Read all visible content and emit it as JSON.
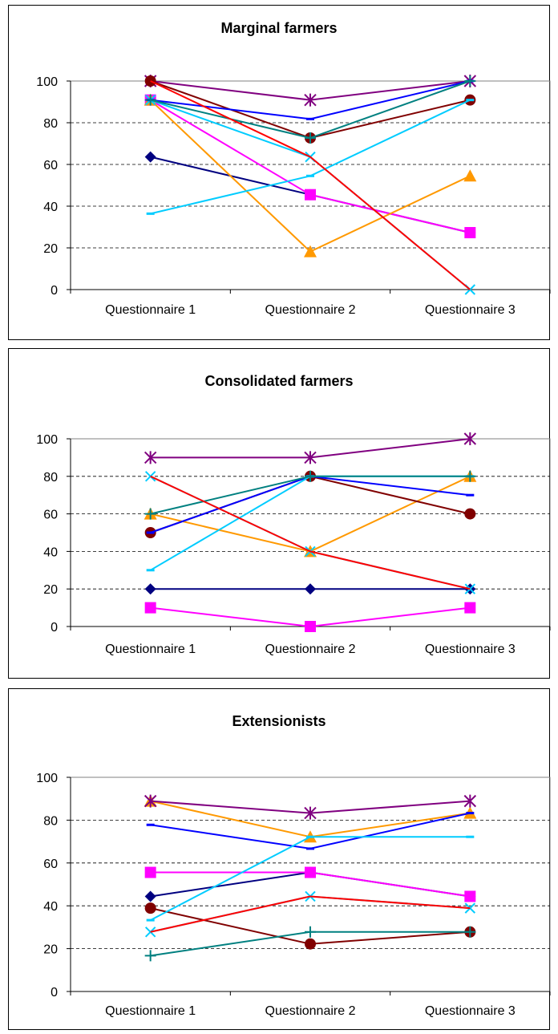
{
  "chart_data": [
    {
      "type": "line",
      "title": "Marginal farmers",
      "categories": [
        "Questionnaire 1",
        "Questionnaire 2",
        "Questionnaire 3"
      ],
      "ylim": [
        0,
        100
      ],
      "yticks": [
        "0",
        "20",
        "40",
        "60",
        "80",
        "100"
      ],
      "grid": true,
      "series": [
        {
          "color": "#000080",
          "marker": "diamond",
          "values": [
            63.6,
            45.5,
            27.3
          ]
        },
        {
          "color": "#FF00FF",
          "marker": "square",
          "values": [
            90.9,
            45.5,
            27.3
          ]
        },
        {
          "color": "#FF9900",
          "marker": "triangle",
          "values": [
            90.9,
            18.2,
            54.5
          ]
        },
        {
          "color": "#00CCFF",
          "marker": "x",
          "values": [
            90.9,
            63.6,
            0
          ]
        },
        {
          "color": "#800080",
          "marker": "star",
          "values": [
            100,
            90.9,
            100
          ]
        },
        {
          "color": "#800000",
          "marker": "circle",
          "values": [
            100,
            72.7,
            90.9
          ]
        },
        {
          "color": "#0000FF",
          "marker": "dash",
          "values": [
            90.9,
            81.8,
            100
          ]
        },
        {
          "color": "#00CCFF",
          "marker": "dash",
          "values": [
            36.4,
            54.5,
            90.9
          ]
        },
        {
          "color": "#008080",
          "marker": "plus",
          "values": [
            90.9,
            72.7,
            100
          ]
        },
        {
          "color": "#FF0000",
          "marker": "none",
          "values": [
            100,
            63.6,
            0
          ]
        }
      ]
    },
    {
      "type": "line",
      "title": "Consolidated farmers",
      "categories": [
        "Questionnaire 1",
        "Questionnaire 2",
        "Questionnaire 3"
      ],
      "ylim": [
        0,
        100
      ],
      "yticks": [
        "0",
        "20",
        "40",
        "60",
        "80",
        "100"
      ],
      "grid": true,
      "series": [
        {
          "color": "#000080",
          "marker": "diamond",
          "values": [
            20,
            20,
            20
          ]
        },
        {
          "color": "#FF00FF",
          "marker": "square",
          "values": [
            10,
            0,
            10
          ]
        },
        {
          "color": "#FF9900",
          "marker": "triangle",
          "values": [
            60,
            40,
            80
          ]
        },
        {
          "color": "#00CCFF",
          "marker": "x",
          "values": [
            80,
            40,
            20
          ]
        },
        {
          "color": "#800080",
          "marker": "star",
          "values": [
            90,
            90,
            100
          ]
        },
        {
          "color": "#800000",
          "marker": "circle",
          "values": [
            50,
            80,
            60
          ]
        },
        {
          "color": "#0000FF",
          "marker": "dash",
          "values": [
            50,
            80,
            70
          ]
        },
        {
          "color": "#00CCFF",
          "marker": "dash",
          "values": [
            30,
            80,
            80
          ]
        },
        {
          "color": "#008080",
          "marker": "plus",
          "values": [
            60,
            80,
            80
          ]
        },
        {
          "color": "#FF0000",
          "marker": "none",
          "values": [
            80,
            40,
            20
          ]
        }
      ]
    },
    {
      "type": "line",
      "title": "Extensionists",
      "categories": [
        "Questionnaire 1",
        "Questionnaire 2",
        "Questionnaire 3"
      ],
      "ylim": [
        0,
        100
      ],
      "yticks": [
        "0",
        "20",
        "40",
        "60",
        "80",
        "100"
      ],
      "grid": true,
      "series": [
        {
          "color": "#000080",
          "marker": "diamond",
          "values": [
            44.4,
            55.6,
            44.4
          ]
        },
        {
          "color": "#FF00FF",
          "marker": "square",
          "values": [
            55.6,
            55.6,
            44.4
          ]
        },
        {
          "color": "#FF9900",
          "marker": "triangle",
          "values": [
            88.9,
            72.2,
            83.3
          ]
        },
        {
          "color": "#00CCFF",
          "marker": "x",
          "values": [
            27.8,
            44.4,
            38.9
          ]
        },
        {
          "color": "#800080",
          "marker": "star",
          "values": [
            88.9,
            83.3,
            88.9
          ]
        },
        {
          "color": "#800000",
          "marker": "circle",
          "values": [
            38.9,
            22.2,
            27.8
          ]
        },
        {
          "color": "#0000FF",
          "marker": "dash",
          "values": [
            77.8,
            66.7,
            83.3
          ]
        },
        {
          "color": "#00CCFF",
          "marker": "dash",
          "values": [
            33.3,
            72.2,
            72.2
          ]
        },
        {
          "color": "#008080",
          "marker": "plus",
          "values": [
            16.7,
            27.8,
            27.8
          ]
        },
        {
          "color": "#FF0000",
          "marker": "none",
          "values": [
            27.8,
            44.4,
            38.9
          ]
        }
      ]
    }
  ]
}
